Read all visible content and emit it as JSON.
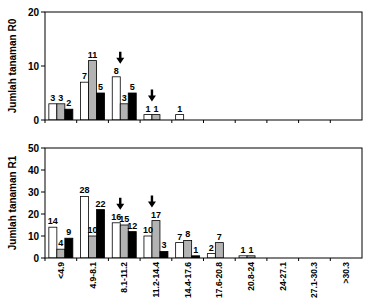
{
  "chart_data": [
    {
      "type": "bar",
      "ylabel": "Jumlah tanaman R0",
      "categories": [
        null,
        null,
        null,
        null,
        null,
        null,
        null,
        null,
        null,
        null
      ],
      "series": [
        {
          "color": "#ffffff",
          "values": [
            3,
            7,
            8,
            1,
            1,
            null,
            null,
            null,
            null,
            null
          ]
        },
        {
          "color": "#b3b3b3",
          "values": [
            3,
            11,
            3,
            1,
            null,
            null,
            null,
            null,
            null,
            null
          ]
        },
        {
          "color": "#000000",
          "values": [
            2,
            5,
            5,
            null,
            null,
            null,
            null,
            null,
            null,
            null
          ]
        }
      ],
      "ylim": [
        0,
        20
      ],
      "yticks": [
        0,
        10,
        20
      ],
      "grid": false,
      "data_labels": true
    },
    {
      "type": "bar",
      "ylabel": "Jumlah tanaman R1",
      "categories": [
        "<4.9",
        "4.9-8.1",
        "8.1-11.2",
        "11.2-14.4",
        "14.4-17.6",
        "17.6-20.8",
        "20.8-24",
        "24-27.1",
        "27.1-30.3",
        ">30.3"
      ],
      "series": [
        {
          "color": "#ffffff",
          "values": [
            14,
            28,
            16,
            10,
            7,
            2,
            1,
            null,
            null,
            null
          ]
        },
        {
          "color": "#b3b3b3",
          "values": [
            4,
            10,
            15,
            17,
            8,
            7,
            1,
            null,
            null,
            null
          ]
        },
        {
          "color": "#000000",
          "values": [
            9,
            22,
            12,
            3,
            1,
            null,
            null,
            null,
            null,
            null
          ]
        }
      ],
      "ylim": [
        0,
        50
      ],
      "yticks": [
        0,
        10,
        20,
        30,
        40,
        50
      ],
      "grid": false,
      "data_labels": true
    }
  ]
}
